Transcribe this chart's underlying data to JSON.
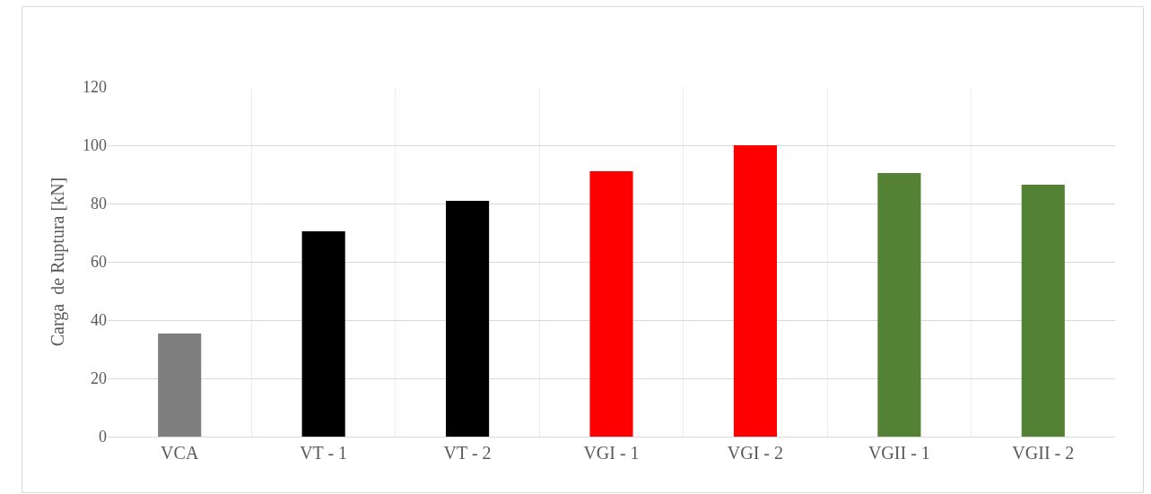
{
  "chart_data": {
    "type": "bar",
    "ylabel": "Carga  de Ruptura [kN]",
    "categories": [
      "VCA",
      "VT - 1",
      "VT - 2",
      "VGI - 1",
      "VGI - 2",
      "VGII - 1",
      "VGII - 2"
    ],
    "values": [
      35.4,
      70.5,
      80.9,
      91.1,
      100,
      90.5,
      86.5
    ],
    "colors": [
      "#7f7f7f",
      "#000000",
      "#000000",
      "#ff0000",
      "#ff0000",
      "#548235",
      "#548235"
    ],
    "ylim": [
      0,
      120
    ],
    "yticks": [
      0,
      20,
      40,
      60,
      80,
      100,
      120
    ],
    "grid": true
  }
}
